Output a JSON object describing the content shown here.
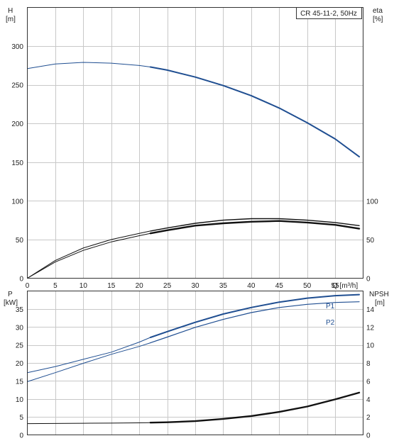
{
  "chart_data": [
    {
      "type": "line",
      "title": "CR 45-11-2, 50Hz",
      "xlabel": "Q [m³/h]",
      "x_ticks": [
        0,
        5,
        10,
        15,
        20,
        25,
        30,
        35,
        40,
        45,
        50,
        55
      ],
      "xlim": [
        0,
        60
      ],
      "y_left": {
        "label_line1": "H",
        "label_line2": "[m]",
        "ticks": [
          0,
          50,
          100,
          150,
          200,
          250,
          300
        ],
        "ylim": [
          0,
          350
        ]
      },
      "y_right": {
        "label_line1": "eta",
        "label_line2": "[%]",
        "ticks": [
          0,
          50,
          100
        ]
      },
      "series": [
        {
          "name": "H",
          "color": "#1f4e91",
          "x": [
            0,
            5,
            10,
            15,
            20,
            22,
            25,
            30,
            35,
            40,
            45,
            50,
            55,
            59.3
          ],
          "y": [
            271,
            277,
            279,
            278,
            275,
            273,
            269,
            260,
            249,
            236,
            220,
            201,
            180,
            157
          ]
        },
        {
          "name": "eta (upper)",
          "color": "#111111",
          "x": [
            0,
            5,
            10,
            15,
            20,
            22,
            25,
            30,
            35,
            40,
            45,
            50,
            55,
            59.3
          ],
          "y": [
            0,
            23,
            39,
            50,
            58,
            61,
            65,
            71,
            75,
            77,
            77,
            75,
            72,
            68
          ]
        },
        {
          "name": "eta (lower)",
          "color": "#111111",
          "x": [
            0,
            5,
            10,
            15,
            20,
            22,
            25,
            30,
            35,
            40,
            45,
            50,
            55,
            59.3
          ],
          "y": [
            0,
            21,
            36,
            47,
            55,
            58,
            62,
            68,
            71,
            73,
            74,
            72,
            69,
            64
          ]
        }
      ],
      "grid": true
    },
    {
      "type": "line",
      "xlim": [
        0,
        60
      ],
      "y_left": {
        "label_line1": "P",
        "label_line2": "[kW]",
        "ticks": [
          0,
          5,
          10,
          15,
          20,
          25,
          30,
          35
        ],
        "ylim": [
          0,
          40
        ]
      },
      "y_right": {
        "label_line1": "NPSH",
        "label_line2": "[m]",
        "ticks": [
          0,
          2,
          4,
          6,
          8,
          10,
          12,
          14
        ],
        "ylim": [
          0,
          16
        ]
      },
      "series": [
        {
          "name": "P1",
          "axis": "left",
          "color": "#1f4e91",
          "x": [
            0,
            5,
            10,
            15,
            20,
            22,
            25,
            30,
            35,
            40,
            45,
            50,
            55,
            59.3
          ],
          "y": [
            17.3,
            19,
            21,
            23,
            25.8,
            27.1,
            28.7,
            31.3,
            33.6,
            35.4,
            36.9,
            38,
            38.7,
            39
          ]
        },
        {
          "name": "P2",
          "axis": "left",
          "color": "#1f4e91",
          "x": [
            0,
            5,
            10,
            15,
            20,
            22,
            25,
            30,
            35,
            40,
            45,
            50,
            55,
            59.3
          ],
          "y": [
            14.8,
            17.3,
            19.9,
            22.4,
            24.6,
            25.6,
            27.2,
            29.9,
            32.1,
            34,
            35.4,
            36.3,
            36.8,
            37
          ]
        },
        {
          "name": "NPSH",
          "axis": "right",
          "color": "#111111",
          "x": [
            0,
            5,
            10,
            15,
            20,
            22,
            25,
            30,
            35,
            40,
            45,
            50,
            55,
            59.3
          ],
          "y": [
            1.25,
            1.27,
            1.29,
            1.31,
            1.34,
            1.36,
            1.4,
            1.53,
            1.78,
            2.1,
            2.55,
            3.15,
            3.95,
            4.7
          ]
        }
      ],
      "grid": true
    }
  ]
}
